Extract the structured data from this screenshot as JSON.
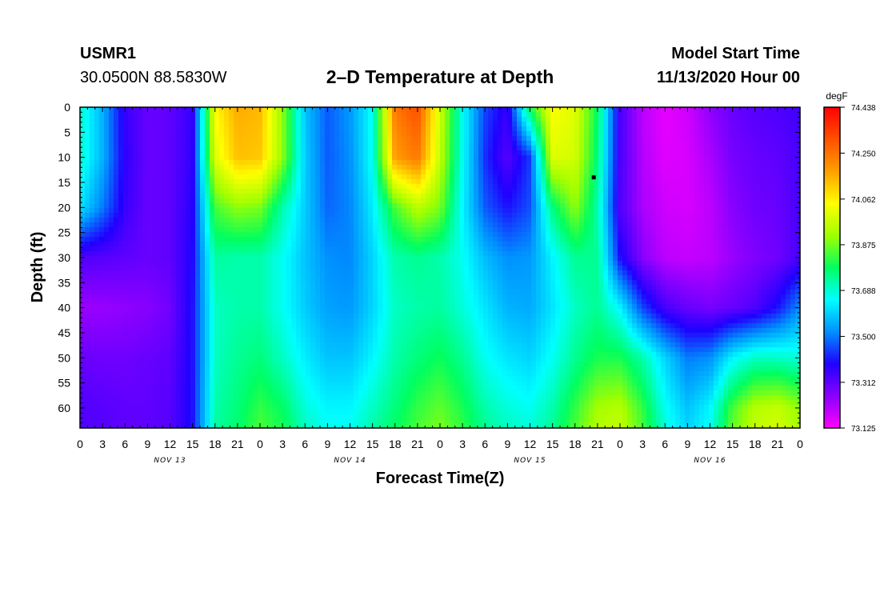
{
  "header": {
    "station": "USMR1",
    "coordinates": "30.0500N 88.5830W",
    "title": "2–D Temperature at Depth",
    "start_label": "Model Start Time",
    "start_value": "11/13/2020 Hour 00"
  },
  "chart_data": {
    "type": "heatmap",
    "title": "2–D Temperature at Depth",
    "xlabel": "Forecast Time(Z)",
    "ylabel": "Depth (ft)",
    "x_range_hours": [
      0,
      96
    ],
    "x_tick_labels": [
      "0",
      "3",
      "6",
      "9",
      "12",
      "15",
      "18",
      "21",
      "0",
      "3",
      "6",
      "9",
      "12",
      "15",
      "18",
      "21",
      "0",
      "3",
      "6",
      "9",
      "12",
      "15",
      "18",
      "21",
      "0",
      "3",
      "6",
      "9",
      "12",
      "15",
      "18",
      "21",
      "0"
    ],
    "day_labels": [
      {
        "text": "NOV 13",
        "hour": 12
      },
      {
        "text": "NOV 14",
        "hour": 36
      },
      {
        "text": "NOV 15",
        "hour": 60
      },
      {
        "text": "NOV 16",
        "hour": 84
      }
    ],
    "y_range": [
      0,
      64
    ],
    "y_ticks": [
      0,
      5,
      10,
      15,
      20,
      25,
      30,
      35,
      40,
      45,
      50,
      55,
      60
    ],
    "y_inverted": true,
    "colorbar": {
      "unit": "degF",
      "min": 73.125,
      "max": 74.438,
      "labels": [
        "74.438",
        "74.250",
        "74.062",
        "73.875",
        "73.688",
        "73.500",
        "73.312",
        "73.125"
      ],
      "colors": [
        "#ff00ff",
        "#8a00ff",
        "#2000ff",
        "#0090ff",
        "#00ffff",
        "#00ff60",
        "#a0ff00",
        "#ffff00",
        "#ffa000",
        "#ff5000",
        "#ff0000"
      ]
    },
    "grid_rows": [
      {
        "depth": 0,
        "values": [
          73.69,
          73.56,
          73.36,
          73.3,
          73.31,
          73.36,
          74.05,
          74.16,
          74.14,
          73.9,
          73.58,
          73.47,
          73.53,
          73.66,
          74.24,
          74.31,
          73.98,
          73.66,
          73.45,
          73.36,
          73.8,
          74.04,
          74.0,
          73.78,
          73.34,
          73.2,
          73.15,
          73.18,
          73.25,
          73.3,
          73.32,
          73.33,
          73.35
        ]
      },
      {
        "depth": 10,
        "values": [
          73.69,
          73.56,
          73.37,
          73.3,
          73.31,
          73.37,
          74.0,
          74.13,
          74.12,
          73.9,
          73.59,
          73.47,
          73.52,
          73.66,
          74.18,
          74.24,
          73.96,
          73.66,
          73.43,
          73.32,
          73.44,
          74.0,
          73.98,
          73.76,
          73.34,
          73.21,
          73.16,
          73.17,
          73.22,
          73.28,
          73.3,
          73.31,
          73.34
        ]
      },
      {
        "depth": 20,
        "values": [
          73.62,
          73.5,
          73.36,
          73.3,
          73.31,
          73.38,
          73.84,
          73.9,
          73.88,
          73.72,
          73.59,
          73.48,
          73.51,
          73.63,
          73.84,
          73.95,
          73.88,
          73.64,
          73.47,
          73.4,
          73.46,
          73.76,
          73.9,
          73.72,
          73.33,
          73.22,
          73.18,
          73.17,
          73.2,
          73.26,
          73.29,
          73.3,
          73.34
        ]
      },
      {
        "depth": 30,
        "values": [
          73.33,
          73.32,
          73.31,
          73.3,
          73.31,
          73.39,
          73.73,
          73.72,
          73.72,
          73.66,
          73.58,
          73.52,
          73.51,
          73.6,
          73.72,
          73.74,
          73.72,
          73.66,
          73.57,
          73.52,
          73.53,
          73.64,
          73.74,
          73.74,
          73.4,
          73.26,
          73.2,
          73.19,
          73.2,
          73.24,
          73.27,
          73.29,
          73.34
        ]
      },
      {
        "depth": 40,
        "values": [
          73.24,
          73.24,
          73.25,
          73.26,
          73.29,
          73.4,
          73.7,
          73.72,
          73.72,
          73.66,
          73.59,
          73.54,
          73.53,
          73.6,
          73.7,
          73.72,
          73.73,
          73.68,
          73.62,
          73.56,
          73.55,
          73.62,
          73.7,
          73.74,
          73.64,
          73.45,
          73.34,
          73.3,
          73.28,
          73.3,
          73.33,
          73.4,
          73.52
        ]
      },
      {
        "depth": 50,
        "values": [
          73.3,
          73.29,
          73.29,
          73.3,
          73.31,
          73.4,
          73.7,
          73.74,
          73.76,
          73.7,
          73.63,
          73.58,
          73.58,
          73.64,
          73.72,
          73.76,
          73.79,
          73.74,
          73.66,
          73.62,
          73.6,
          73.66,
          73.74,
          73.8,
          73.8,
          73.72,
          73.6,
          73.5,
          73.52,
          73.64,
          73.7,
          73.7,
          73.68
        ]
      },
      {
        "depth": 60,
        "values": [
          73.33,
          73.32,
          73.31,
          73.31,
          73.32,
          73.4,
          73.72,
          73.76,
          73.82,
          73.78,
          73.68,
          73.64,
          73.64,
          73.7,
          73.76,
          73.82,
          73.86,
          73.8,
          73.72,
          73.68,
          73.66,
          73.72,
          73.82,
          73.92,
          73.94,
          73.82,
          73.66,
          73.58,
          73.64,
          73.84,
          73.94,
          73.96,
          73.9
        ]
      },
      {
        "depth": 64,
        "values": [
          73.33,
          73.32,
          73.31,
          73.31,
          73.32,
          73.4,
          73.73,
          73.77,
          73.84,
          73.8,
          73.7,
          73.66,
          73.66,
          73.72,
          73.78,
          73.84,
          73.88,
          73.82,
          73.74,
          73.7,
          73.68,
          73.74,
          73.84,
          73.94,
          73.96,
          73.84,
          73.68,
          73.6,
          73.66,
          73.86,
          73.96,
          73.98,
          73.92
        ]
      }
    ],
    "marker": {
      "hour": 68.5,
      "depth": 14
    }
  }
}
